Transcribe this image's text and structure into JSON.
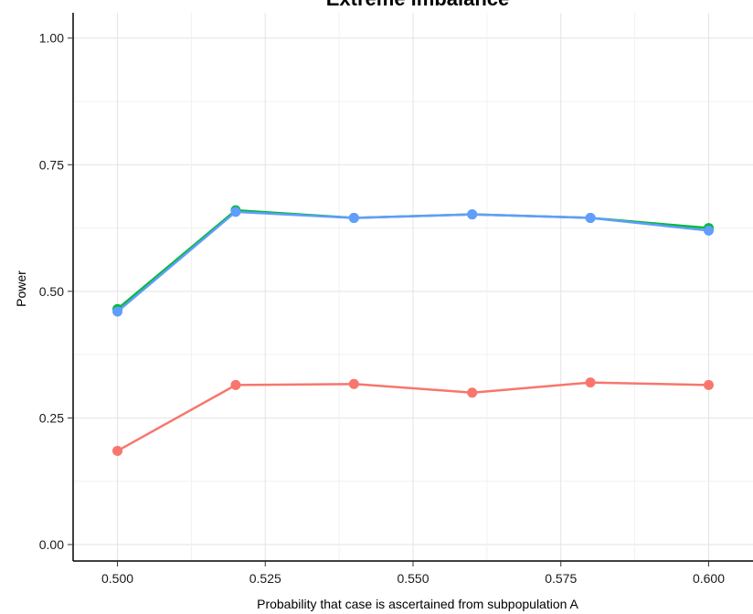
{
  "chart_data": {
    "type": "line",
    "title": "Extreme imbalance",
    "xlabel": "Probability that case is ascertained from subpopulation A",
    "ylabel": "Power",
    "xlim": [
      0.4925,
      0.6075
    ],
    "ylim": [
      -0.0325,
      1.05
    ],
    "grid": true,
    "legend": "none",
    "x": [
      0.5,
      0.52,
      0.54,
      0.56,
      0.58,
      0.6
    ],
    "xticks": [
      0.5,
      0.525,
      0.55,
      0.575,
      0.6
    ],
    "xtick_labels": [
      "0.500",
      "0.525",
      "0.550",
      "0.575",
      "0.600"
    ],
    "yticks": [
      0.0,
      0.25,
      0.5,
      0.75,
      1.0
    ],
    "ytick_labels": [
      "0.00",
      "0.25",
      "0.50",
      "0.75",
      "1.00"
    ],
    "series": [
      {
        "color": "#f8766d",
        "values": [
          0.185,
          0.315,
          0.317,
          0.3,
          0.32,
          0.315
        ]
      },
      {
        "color": "#00ba38",
        "values": [
          0.465,
          0.66,
          0.645,
          0.652,
          0.645,
          0.625
        ]
      },
      {
        "color": "#619cff",
        "values": [
          0.46,
          0.657,
          0.645,
          0.652,
          0.645,
          0.62
        ]
      }
    ]
  }
}
